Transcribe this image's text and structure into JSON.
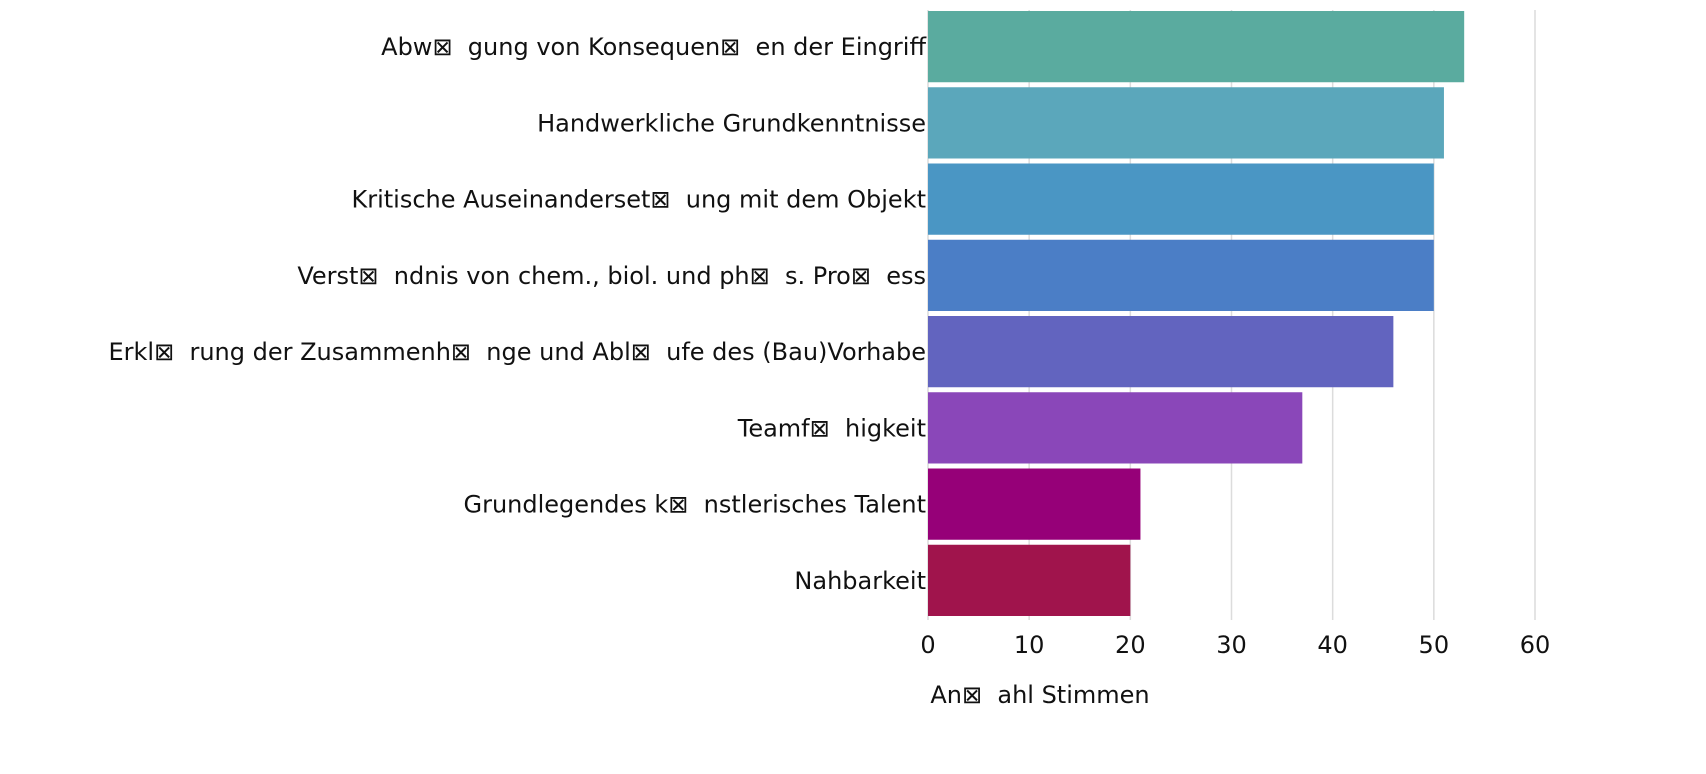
{
  "chart_data": {
    "type": "barh",
    "categories": [
      "Abw⊠  gung von Konsequen⊠  en der Eingriff",
      "Handwerkliche Grundkenntnisse",
      "Kritische Auseinanderset⊠  ung mit dem Objekt",
      "Verst⊠  ndnis von chem., biol. und ph⊠  s. Pro⊠  ess",
      "Erkl⊠  rung der Zusammenh⊠  nge und Abl⊠  ufe des (Bau)Vorhabe",
      "Teamf⊠  higkeit",
      "Grundlegendes k⊠  nstlerisches Talent",
      "Nahbarkeit"
    ],
    "values": [
      53,
      51,
      50,
      50,
      46,
      37,
      21,
      20
    ],
    "colors": [
      "#5aab9f",
      "#5ba7bb",
      "#4a96c4",
      "#4b7ec6",
      "#6264bf",
      "#8a47b9",
      "#960078",
      "#a0144c"
    ],
    "xlabel": "An⊠  ahl Stimmen",
    "xlim": [
      0,
      60
    ],
    "xticks": [
      0,
      10,
      20,
      30,
      40,
      50,
      60
    ],
    "grid": true
  }
}
